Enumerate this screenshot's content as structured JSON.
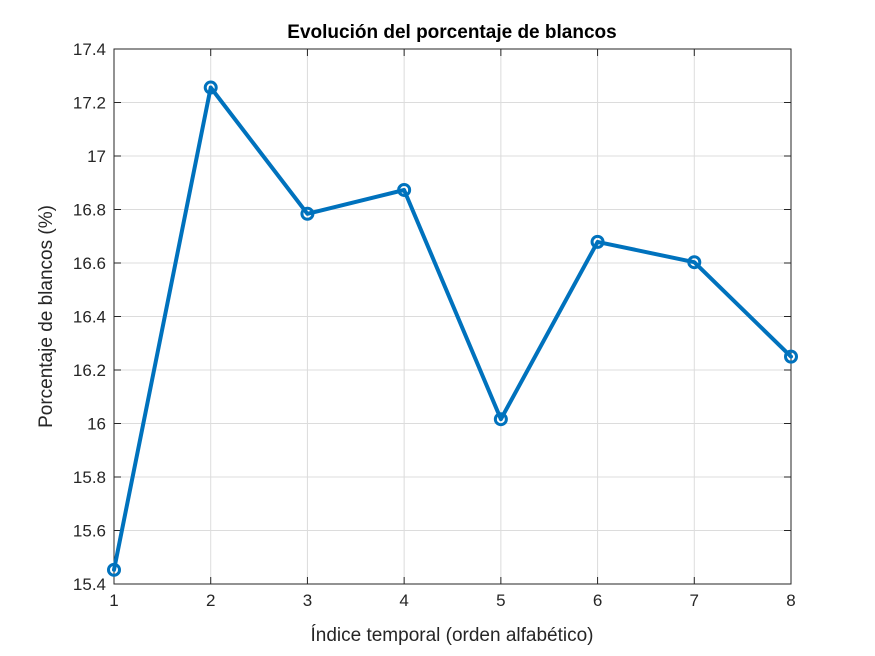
{
  "chart_data": {
    "type": "line",
    "title": "Evolución del porcentaje de blancos",
    "xlabel": "Índice temporal (orden alfabético)",
    "ylabel": "Porcentaje de blancos (%)",
    "x": [
      1,
      2,
      3,
      4,
      5,
      6,
      7,
      8
    ],
    "values": [
      15.453,
      17.256,
      16.784,
      16.873,
      16.016,
      16.679,
      16.603,
      16.25
    ],
    "xlim": [
      1,
      8
    ],
    "ylim": [
      15.4,
      17.4
    ],
    "xticks": [
      "1",
      "2",
      "3",
      "4",
      "5",
      "6",
      "7",
      "8"
    ],
    "yticks": [
      "15.4",
      "15.6",
      "15.8",
      "16",
      "16.2",
      "16.4",
      "16.6",
      "16.8",
      "17",
      "17.2",
      "17.4"
    ],
    "grid": true,
    "marker": "circle",
    "color": "#0072BD"
  }
}
